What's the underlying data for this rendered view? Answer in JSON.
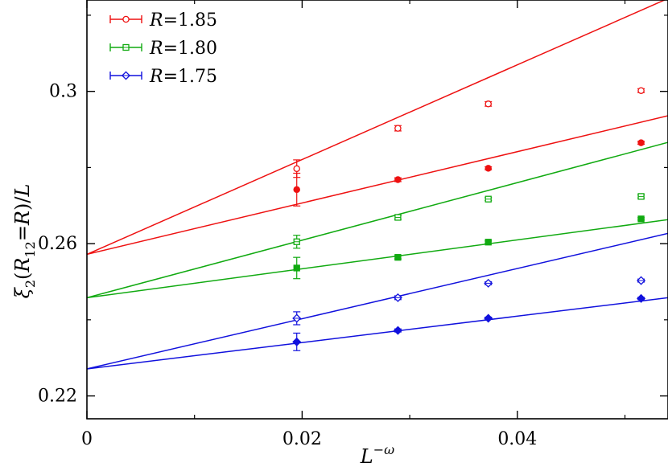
{
  "chart_data": {
    "type": "scatter",
    "xlabel": "L",
    "xlabel_sup": "−ω",
    "ylabel_parts": [
      "ξ",
      "2",
      "(",
      "R",
      "12",
      "=",
      "R",
      ")/",
      "L"
    ],
    "xlim": [
      0,
      0.054
    ],
    "ylim": [
      0.214,
      0.324
    ],
    "xticks": [
      0,
      0.02,
      0.04
    ],
    "xtick_labels": [
      "0",
      "0.02",
      "0.04"
    ],
    "yticks": [
      0.22,
      0.26,
      0.3
    ],
    "ytick_labels": [
      "0.22",
      "0.26",
      "0.3"
    ],
    "legend_position": "top-left",
    "series": [
      {
        "name": "R=1.85",
        "name_var": "R",
        "name_val": "=1.85",
        "color": "#ee1111",
        "marker": "circle-open",
        "x": [
          0.0195,
          0.0289,
          0.0373,
          0.0515
        ],
        "y": [
          0.2797,
          0.2903,
          0.2967,
          0.3002
        ],
        "err": [
          0.0023,
          0.0007,
          0.0006,
          0.0005
        ],
        "fit": {
          "x": [
            0,
            0.054
          ],
          "y": [
            0.2572,
            0.3244
          ]
        }
      },
      {
        "name": "",
        "color": "#ee1111",
        "marker": "circle-filled",
        "x": [
          0.0195,
          0.0289,
          0.0373,
          0.0515
        ],
        "y": [
          0.2742,
          0.2768,
          0.2798,
          0.2865
        ],
        "err": [
          0.0043,
          0.0005,
          0.0004,
          0.0004
        ],
        "fit": {
          "x": [
            0,
            0.054
          ],
          "y": [
            0.2572,
            0.2936
          ]
        }
      },
      {
        "name": "R=1.80",
        "name_var": "R",
        "name_val": "=1.80",
        "color": "#11aa11",
        "marker": "square-open",
        "x": [
          0.0195,
          0.0289,
          0.0373,
          0.0515
        ],
        "y": [
          0.2605,
          0.2669,
          0.2717,
          0.2724
        ],
        "err": [
          0.0017,
          0.0005,
          0.0004,
          0.0004
        ],
        "fit": {
          "x": [
            0,
            0.054
          ],
          "y": [
            0.2458,
            0.2866
          ]
        }
      },
      {
        "name": "",
        "color": "#11aa11",
        "marker": "square-filled",
        "x": [
          0.0195,
          0.0289,
          0.0373,
          0.0515
        ],
        "y": [
          0.2536,
          0.2564,
          0.2604,
          0.2665
        ],
        "err": [
          0.0028,
          0.0004,
          0.0003,
          0.0003
        ],
        "fit": {
          "x": [
            0,
            0.054
          ],
          "y": [
            0.2458,
            0.2663
          ]
        }
      },
      {
        "name": "R=1.75",
        "name_var": "R",
        "name_val": "=1.75",
        "color": "#1111dd",
        "marker": "diamond-open",
        "x": [
          0.0195,
          0.0289,
          0.0373,
          0.0515
        ],
        "y": [
          0.2404,
          0.2458,
          0.2496,
          0.2503
        ],
        "err": [
          0.0017,
          0.0005,
          0.0004,
          0.0004
        ],
        "fit": {
          "x": [
            0,
            0.054
          ],
          "y": [
            0.2271,
            0.2627
          ]
        }
      },
      {
        "name": "",
        "color": "#1111dd",
        "marker": "diamond-filled",
        "x": [
          0.0195,
          0.0289,
          0.0373,
          0.0515
        ],
        "y": [
          0.2342,
          0.2372,
          0.2404,
          0.2456
        ],
        "err": [
          0.0023,
          0.0004,
          0.0003,
          0.0003
        ],
        "fit": {
          "x": [
            0,
            0.054
          ],
          "y": [
            0.2271,
            0.2458
          ]
        }
      }
    ]
  }
}
